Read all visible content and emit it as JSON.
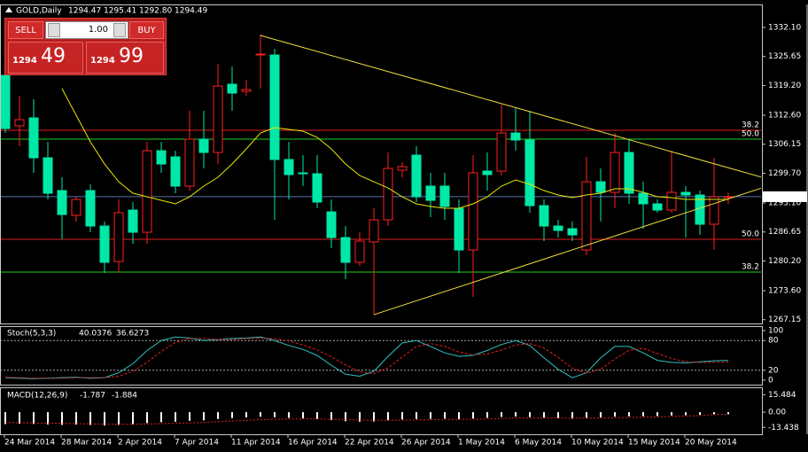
{
  "chart_data": [
    {
      "type": "candlestick",
      "title": "GOLD,Daily",
      "header_values": [
        "1294.47",
        "1295.41",
        "1292.80",
        "1294.49"
      ],
      "categories": [
        "24 Mar 2014",
        null,
        null,
        null,
        "28 Mar 2014",
        null,
        null,
        null,
        "2 Apr 2014",
        null,
        null,
        null,
        "7 Apr 2014",
        null,
        null,
        null,
        "11 Apr 2014",
        null,
        null,
        null,
        "16 Apr 2014",
        null,
        null,
        null,
        "22 Apr 2014",
        null,
        null,
        null,
        "26 Apr 2014",
        null,
        null,
        null,
        "1 May 2014",
        null,
        null,
        null,
        "6 May 2014",
        null,
        null,
        null,
        "10 May 2014",
        null,
        null,
        null,
        "15 May 2014",
        null,
        null,
        null,
        "20 May 2014",
        null,
        null,
        null
      ],
      "open": [
        1321.46,
        1310.23,
        1312.0,
        1303.14,
        1295.85,
        1290.34,
        1295.85,
        1287.97,
        1280.09,
        1291.52,
        1286.59,
        1304.71,
        1303.34,
        1296.84,
        1307.28,
        1304.32,
        1319.49,
        1317.91,
        1325.99,
        1325.99,
        1302.75,
        1299.79,
        1299.59,
        1291.12,
        1285.41,
        1279.9,
        1284.43,
        1289.35,
        1300.38,
        1303.73,
        1296.84,
        1296.84,
        1291.91,
        1282.65,
        1300.18,
        1300.18,
        1308.65,
        1307.08,
        1292.5,
        1287.97,
        1287.38,
        1282.65,
        1297.82,
        1295.46,
        1304.32,
        1295.26,
        1292.9,
        1291.52,
        1295.46,
        1294.87,
        1288.37,
        1294.47
      ],
      "high": [
        1322.44,
        1316.93,
        1316.14,
        1306.68,
        1298.81,
        1294.47,
        1297.23,
        1288.96,
        1293.88,
        1293.29,
        1306.68,
        1306.68,
        1304.71,
        1313.58,
        1313.58,
        1324.02,
        1323.43,
        1320.47,
        1330.52,
        1327.37,
        1306.68,
        1303.73,
        1303.73,
        1293.88,
        1287.97,
        1286.59,
        1291.91,
        1304.32,
        1302.15,
        1305.7,
        1299.79,
        1299.79,
        1293.88,
        1303.73,
        1304.32,
        1314.96,
        1314.17,
        1313.58,
        1293.88,
        1289.35,
        1288.96,
        1303.34,
        1300.78,
        1308.65,
        1307.08,
        1297.82,
        1293.88,
        1304.71,
        1296.84,
        1295.85,
        1303.14,
        1295.41
      ],
      "low": [
        1308.65,
        1305.7,
        1299.79,
        1293.88,
        1285.02,
        1288.96,
        1286.59,
        1277.53,
        1277.53,
        1284.03,
        1284.03,
        1299.79,
        1295.26,
        1295.85,
        1300.78,
        1301.76,
        1313.58,
        1316.93,
        1318.5,
        1289.35,
        1293.88,
        1296.84,
        1291.91,
        1283.05,
        1276.15,
        1279.11,
        1268.27,
        1287.97,
        1298.81,
        1293.29,
        1289.94,
        1289.35,
        1277.53,
        1272.21,
        1295.85,
        1299.2,
        1304.71,
        1290.93,
        1284.62,
        1285.41,
        1284.62,
        1281.47,
        1288.96,
        1291.91,
        1292.9,
        1287.38,
        1290.93,
        1290.93,
        1285.41,
        1286.0,
        1282.65,
        1292.8
      ],
      "close": [
        1309.64,
        1311.61,
        1303.14,
        1295.26,
        1290.53,
        1293.88,
        1287.97,
        1279.9,
        1290.93,
        1286.59,
        1304.71,
        1301.76,
        1296.84,
        1307.28,
        1304.32,
        1319.09,
        1317.52,
        1318.31,
        1326.19,
        1302.75,
        1299.4,
        1299.59,
        1293.29,
        1285.41,
        1279.9,
        1284.62,
        1289.35,
        1300.78,
        1301.17,
        1294.47,
        1293.68,
        1292.31,
        1282.65,
        1299.79,
        1299.4,
        1308.65,
        1307.08,
        1292.5,
        1287.97,
        1286.99,
        1286.0,
        1297.82,
        1295.46,
        1304.32,
        1295.26,
        1292.9,
        1291.52,
        1295.46,
        1294.87,
        1288.37,
        1294.47,
        1294.49
      ],
      "up_color": "#ff2020",
      "down_color": "#00e8a8",
      "ma": {
        "color": "#e8e800",
        "values": [
          null,
          null,
          null,
          null,
          1318.5,
          1312.59,
          1306.68,
          1301.76,
          1297.82,
          1295.26,
          1294.47,
          1293.68,
          1292.9,
          1294.47,
          1296.84,
          1298.81,
          1301.76,
          1305.11,
          1308.65,
          1309.84,
          1309.44,
          1309.05,
          1307.67,
          1305.11,
          1301.76,
          1299.2,
          1297.82,
          1296.44,
          1294.47,
          1292.9,
          1292.31,
          1291.91,
          1291.91,
          1292.9,
          1294.47,
          1296.84,
          1298.22,
          1297.23,
          1295.85,
          1294.87,
          1294.28,
          1294.87,
          1295.26,
          1296.25,
          1296.25,
          1295.46,
          1294.47,
          1294.28,
          1293.88,
          1293.88,
          1293.88,
          1293.88
        ]
      },
      "levels": [
        {
          "value": 1309.25,
          "label": "38.2",
          "color": "#e02020"
        },
        {
          "value": 1307.28,
          "label": "50.0",
          "color": "#20d020"
        },
        {
          "value": 1285.02,
          "label": "50.0",
          "color": "#e02020"
        },
        {
          "value": 1277.73,
          "label": "38.2",
          "color": "#20d020"
        }
      ],
      "trendlines": [
        {
          "x": [
            18,
            53.375
          ],
          "y": [
            1330.32,
            1298.81
          ],
          "color": "#f0e040"
        },
        {
          "x": [
            26,
            53.375
          ],
          "y": [
            1268.27,
            1296.44
          ],
          "color": "#f0e040"
        }
      ],
      "current_price": {
        "value": 1294.49,
        "label": "1294.49",
        "color": "#5870a8"
      },
      "ylim": [
        1266.31,
        1337.22
      ],
      "yticks": [
        {
          "value": 1332.1,
          "label": "1332.10"
        },
        1325.65,
        {
          "value": 1319.2,
          "label": "1319.20"
        },
        {
          "value": 1312.6,
          "label": "1312.60"
        },
        1306.15,
        {
          "value": 1299.7,
          "label": "1299.70"
        },
        {
          "value": 1293.1,
          "label": "1293.10"
        },
        1286.65,
        {
          "value": 1280.2,
          "label": "1280.20"
        },
        {
          "value": 1273.6,
          "label": "1273.60"
        },
        1267.15
      ]
    },
    {
      "type": "stochastic",
      "title": "Stoch(5,3,3)",
      "header_values": [
        "40.0376",
        "36.6273"
      ],
      "series": [
        {
          "color": "#30c0c0",
          "values": [
            5,
            4,
            3,
            4,
            5,
            6,
            4,
            5,
            15,
            33,
            60,
            80,
            87,
            85,
            80,
            82,
            84,
            85,
            87,
            80,
            70,
            62,
            50,
            30,
            12,
            8,
            18,
            48,
            75,
            80,
            68,
            55,
            48,
            50,
            60,
            72,
            80,
            70,
            45,
            22,
            5,
            15,
            45,
            68,
            68,
            55,
            40,
            36,
            35,
            37,
            39,
            40.0376
          ]
        },
        {
          "color": "#e02020",
          "values": [
            6,
            5,
            4,
            4,
            4,
            5,
            5,
            5,
            8,
            18,
            36,
            58,
            76,
            84,
            84,
            82,
            82,
            84,
            85,
            84,
            79,
            71,
            61,
            47,
            31,
            17,
            13,
            25,
            47,
            68,
            74,
            68,
            57,
            51,
            53,
            61,
            71,
            74,
            65,
            46,
            24,
            14,
            22,
            43,
            60,
            64,
            54,
            44,
            37,
            36,
            36,
            36.6273
          ]
        }
      ],
      "levels": [
        80,
        20
      ],
      "ylim": [
        -9,
        109
      ],
      "yticks": [
        100,
        80,
        20,
        0
      ]
    },
    {
      "type": "macd",
      "title": "MACD(12,26,9)",
      "header_values": [
        "-1.787",
        "-1.884"
      ],
      "values": [
        -10.5,
        -10.2,
        -10.4,
        -10.8,
        -11.2,
        -11.0,
        -11.3,
        -11.8,
        -11.2,
        -10.8,
        -9.6,
        -8.8,
        -8.4,
        -7.6,
        -7.2,
        -6.0,
        -5.2,
        -4.6,
        -3.9,
        -4.4,
        -5.0,
        -5.5,
        -6.2,
        -7.0,
        -8.0,
        -8.4,
        -8.2,
        -7.2,
        -6.4,
        -6.0,
        -5.8,
        -5.7,
        -6.3,
        -5.6,
        -5.0,
        -4.2,
        -3.8,
        -4.3,
        -4.9,
        -5.4,
        -5.7,
        -5.0,
        -4.6,
        -3.9,
        -3.6,
        -3.5,
        -3.4,
        -2.9,
        -2.7,
        -2.4,
        -1.9,
        -1.787
      ],
      "color": "#ffffff",
      "signal": {
        "color": "#e02020",
        "values": [
          -9.0,
          -9.3,
          -9.5,
          -9.7,
          -9.9,
          -10.1,
          -10.3,
          -10.5,
          -10.6,
          -10.6,
          -10.4,
          -10.1,
          -9.8,
          -9.4,
          -9.0,
          -8.4,
          -7.8,
          -7.2,
          -6.6,
          -6.2,
          -6.0,
          -5.9,
          -5.9,
          -6.1,
          -6.5,
          -6.9,
          -7.2,
          -7.2,
          -7.0,
          -6.8,
          -6.6,
          -6.4,
          -6.4,
          -6.2,
          -6.0,
          -5.6,
          -5.2,
          -5.0,
          -5.0,
          -5.1,
          -5.2,
          -5.2,
          -5.1,
          -4.9,
          -4.6,
          -4.4,
          -4.2,
          -3.8,
          -3.4,
          -3.0,
          -2.0,
          -1.884
        ]
      },
      "ylim": [
        -19.5,
        22
      ],
      "yticks": [
        15.484,
        {
          "value": 0,
          "label": "0.00"
        },
        -13.438
      ]
    }
  ],
  "order_panel": {
    "sell": "SELL",
    "buy": "BUY",
    "lot": "1.00",
    "bid": {
      "big": "1294",
      "small": "49"
    },
    "ask": {
      "big": "1294",
      "small": "99"
    }
  }
}
